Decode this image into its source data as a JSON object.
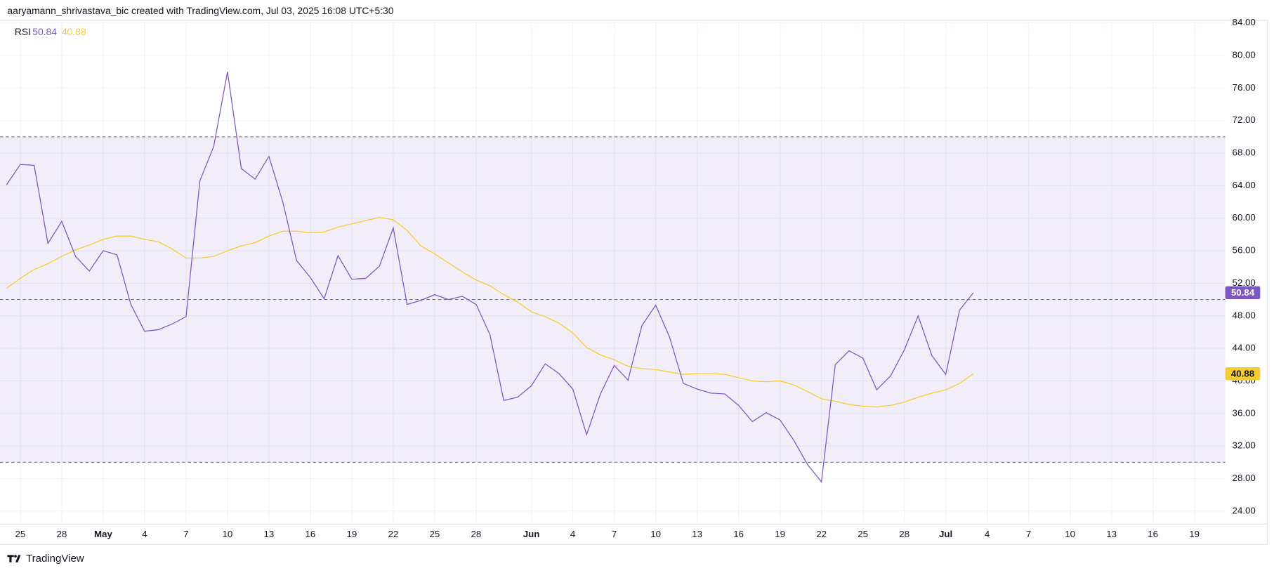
{
  "chart_data": {
    "type": "line",
    "attribution": "aaryamann_shrivastava_bic created with TradingView.com, Jul 03, 2025 16:08 UTC+5:30",
    "legend_title": "RSI",
    "brand": "TradingView",
    "categories": [
      null,
      "25",
      null,
      null,
      "28",
      null,
      null,
      "May",
      null,
      null,
      "4",
      null,
      null,
      "7",
      null,
      null,
      "10",
      null,
      null,
      "13",
      null,
      null,
      "16",
      null,
      null,
      "19",
      null,
      null,
      "22",
      null,
      null,
      "25",
      null,
      null,
      "28",
      null,
      null,
      null,
      "Jun",
      null,
      null,
      "4",
      null,
      null,
      "7",
      null,
      null,
      "10",
      null,
      null,
      "13",
      null,
      null,
      "16",
      null,
      null,
      "19",
      null,
      null,
      "22",
      null,
      null,
      "25",
      null,
      null,
      "28",
      null,
      null,
      "Jul",
      null,
      null,
      "4",
      null,
      null,
      "7",
      null,
      null,
      "10",
      null,
      null,
      "13",
      null,
      null,
      "16",
      null,
      null,
      "19",
      null,
      null
    ],
    "series": [
      {
        "color": "#7e57c2",
        "tag_text_color": "#ffffff",
        "values": [
          64.1,
          66.6,
          66.5,
          56.9,
          59.6,
          55.3,
          53.5,
          56.0,
          55.5,
          49.4,
          46.1,
          46.3,
          47.0,
          47.9,
          64.6,
          68.8,
          78.0,
          66.1,
          64.8,
          67.6,
          62.0,
          54.8,
          52.7,
          50.1,
          55.4,
          52.5,
          52.6,
          54.1,
          58.8,
          49.4,
          49.9,
          50.6,
          50.0,
          50.4,
          49.4,
          45.7,
          37.6,
          38.0,
          39.4,
          42.1,
          40.9,
          39.0,
          33.4,
          38.4,
          41.9,
          40.1,
          46.8,
          49.3,
          45.4,
          39.7,
          39.0,
          38.5,
          38.4,
          37.0,
          35.0,
          36.1,
          35.2,
          32.7,
          29.7,
          27.6,
          42.0,
          43.7,
          42.8,
          38.9,
          40.6,
          43.8,
          48.0,
          43.1,
          40.8,
          48.7,
          50.84,
          null,
          null,
          null,
          null,
          null,
          null,
          null,
          null,
          null,
          null,
          null,
          null,
          null,
          null,
          null,
          null,
          null,
          null
        ],
        "value_labels": [
          null,
          null,
          null,
          null,
          null,
          null,
          null,
          null,
          null,
          null,
          null,
          null,
          null,
          null,
          null,
          null,
          null,
          null,
          null,
          null,
          null,
          null,
          null,
          null,
          null,
          null,
          null,
          null,
          null,
          null,
          null,
          null,
          null,
          null,
          null,
          null,
          null,
          null,
          null,
          null,
          null,
          null,
          null,
          null,
          null,
          null,
          null,
          null,
          null,
          null,
          null,
          null,
          null,
          null,
          null,
          null,
          null,
          null,
          null,
          null,
          null,
          null,
          null,
          null,
          null,
          null,
          null,
          null,
          null,
          null,
          "50.84",
          null,
          null,
          null,
          null,
          null,
          null,
          null,
          null,
          null,
          null,
          null,
          null,
          null,
          null,
          null,
          null,
          null,
          null
        ]
      },
      {
        "color": "#f5cc2e",
        "tag_text_color": "#131722",
        "values": [
          51.4,
          52.6,
          53.7,
          54.4,
          55.3,
          56.1,
          56.7,
          57.4,
          57.8,
          57.8,
          57.4,
          57.1,
          56.2,
          55.1,
          55.1,
          55.3,
          56.0,
          56.6,
          57.0,
          57.8,
          58.4,
          58.4,
          58.2,
          58.3,
          58.9,
          59.3,
          59.7,
          60.1,
          59.8,
          58.5,
          56.6,
          55.6,
          54.5,
          53.4,
          52.4,
          51.7,
          50.6,
          49.7,
          48.5,
          47.9,
          47.1,
          45.9,
          44.1,
          43.2,
          42.6,
          41.8,
          41.5,
          41.4,
          41.1,
          40.8,
          40.9,
          40.9,
          40.8,
          40.4,
          40.0,
          39.9,
          40.0,
          39.5,
          38.7,
          37.8,
          37.5,
          37.1,
          36.9,
          36.8,
          37.0,
          37.4,
          38.0,
          38.5,
          38.9,
          39.7,
          40.88,
          null,
          null,
          null,
          null,
          null,
          null,
          null,
          null,
          null,
          null,
          null,
          null,
          null,
          null,
          null,
          null,
          null,
          null
        ],
        "value_labels": [
          null,
          null,
          null,
          null,
          null,
          null,
          null,
          null,
          null,
          null,
          null,
          null,
          null,
          null,
          null,
          null,
          null,
          null,
          null,
          null,
          null,
          null,
          null,
          null,
          null,
          null,
          null,
          null,
          null,
          null,
          null,
          null,
          null,
          null,
          null,
          null,
          null,
          null,
          null,
          null,
          null,
          null,
          null,
          null,
          null,
          null,
          null,
          null,
          null,
          null,
          null,
          null,
          null,
          null,
          null,
          null,
          null,
          null,
          null,
          null,
          null,
          null,
          null,
          null,
          null,
          null,
          null,
          null,
          null,
          null,
          "40.88",
          null,
          null,
          null,
          null,
          null,
          null,
          null,
          null,
          null,
          null,
          null,
          null,
          null,
          null,
          null,
          null,
          null,
          null
        ]
      }
    ],
    "ylim": [
      22.4,
      84.3
    ],
    "yticks": [
      {
        "value": 24,
        "label": "24.00"
      },
      {
        "value": 28,
        "label": "28.00"
      },
      {
        "value": 32,
        "label": "32.00"
      },
      {
        "value": 36,
        "label": "36.00"
      },
      {
        "value": 40,
        "label": "40.00"
      },
      {
        "value": 44,
        "label": "44.00"
      },
      {
        "value": 48,
        "label": "48.00"
      },
      {
        "value": 52,
        "label": "52.00"
      },
      {
        "value": 56,
        "label": "56.00"
      },
      {
        "value": 60,
        "label": "60.00"
      },
      {
        "value": 64,
        "label": "64.00"
      },
      {
        "value": 68,
        "label": "68.00"
      },
      {
        "value": 72,
        "label": "72.00"
      },
      {
        "value": 76,
        "label": "76.00"
      },
      {
        "value": 80,
        "label": "80.00"
      },
      {
        "value": 84,
        "label": "84.00"
      }
    ],
    "bands": [
      30,
      50,
      70
    ],
    "band_fill": "rgba(126,87,194,0.1)",
    "grid": true
  }
}
